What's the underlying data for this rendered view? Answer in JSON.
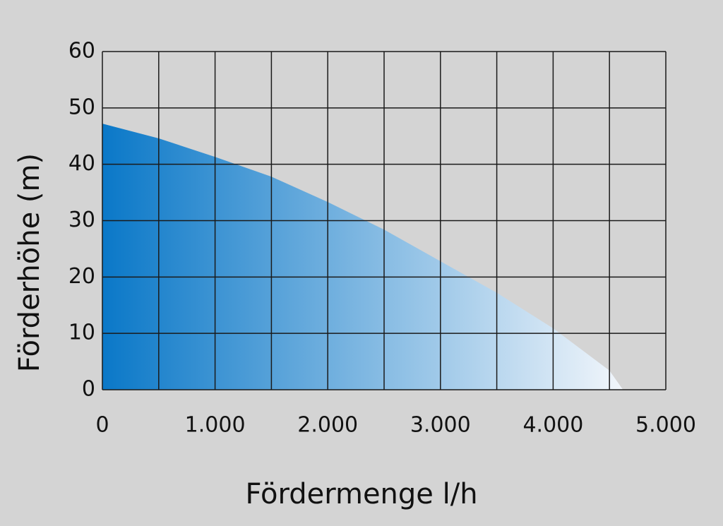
{
  "chart_data": {
    "type": "area",
    "x_label": "Fördermenge l/h",
    "y_label": "Förderhöhe (m)",
    "x": [
      0,
      500,
      1000,
      1500,
      2000,
      2500,
      3000,
      3500,
      4000,
      4500,
      4620
    ],
    "values": [
      47.2,
      44.6,
      41.3,
      37.8,
      33.3,
      28.4,
      22.8,
      17.2,
      10.9,
      3.4,
      0
    ],
    "color": "#0a78c8",
    "xlim": [
      0,
      5000
    ],
    "ylim": [
      0,
      60
    ],
    "xticks": [
      0,
      {
        "value": 1000,
        "label": "1.000"
      },
      {
        "value": 2000,
        "label": "2.000"
      },
      {
        "value": 3000,
        "label": "3.000"
      },
      {
        "value": 4000,
        "label": "4.000"
      },
      {
        "value": 5000,
        "label": "5.000"
      }
    ],
    "xgrid_minor": [
      500,
      1500,
      2500,
      3500,
      4500
    ],
    "yticks": [
      0,
      10,
      20,
      30,
      40,
      50,
      60
    ],
    "grid": true
  }
}
